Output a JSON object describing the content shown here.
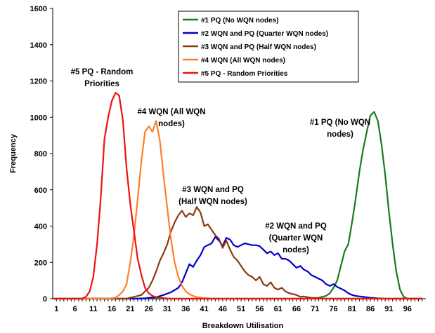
{
  "chart_data": {
    "type": "line",
    "title": "",
    "xlabel": "Breakdown Utilisation",
    "ylabel": "Frequency",
    "xlim": [
      0,
      101
    ],
    "ylim": [
      0,
      1600
    ],
    "x_tick_labels": [
      "1",
      "6",
      "11",
      "16",
      "21",
      "26",
      "31",
      "36",
      "41",
      "46",
      "51",
      "56",
      "61",
      "66",
      "71",
      "76",
      "81",
      "86",
      "91",
      "96"
    ],
    "y_tick_labels": [
      "0",
      "200",
      "400",
      "600",
      "800",
      "1000",
      "1200",
      "1400",
      "1600"
    ],
    "grid": false,
    "legend_position": "top-right",
    "series": [
      {
        "name": "#1 PQ (No WQN nodes)",
        "color": "#1a7a1a",
        "points": [
          [
            0,
            0
          ],
          [
            68,
            0
          ],
          [
            70,
            2
          ],
          [
            72,
            5
          ],
          [
            74,
            15
          ],
          [
            75,
            30
          ],
          [
            76,
            60
          ],
          [
            77,
            100
          ],
          [
            78,
            180
          ],
          [
            79,
            260
          ],
          [
            80,
            300
          ],
          [
            81,
            420
          ],
          [
            82,
            550
          ],
          [
            83,
            700
          ],
          [
            84,
            820
          ],
          [
            85,
            920
          ],
          [
            86,
            1010
          ],
          [
            87,
            1030
          ],
          [
            88,
            980
          ],
          [
            89,
            850
          ],
          [
            90,
            680
          ],
          [
            91,
            480
          ],
          [
            92,
            300
          ],
          [
            93,
            150
          ],
          [
            94,
            50
          ],
          [
            95,
            10
          ],
          [
            96,
            0
          ],
          [
            100,
            0
          ]
        ]
      },
      {
        "name": "#2 WQN and PQ (Quarter WQN nodes)",
        "color": "#0000cc",
        "points": [
          [
            0,
            0
          ],
          [
            22,
            0
          ],
          [
            25,
            2
          ],
          [
            28,
            8
          ],
          [
            30,
            20
          ],
          [
            32,
            35
          ],
          [
            34,
            60
          ],
          [
            35,
            90
          ],
          [
            36,
            140
          ],
          [
            37,
            190
          ],
          [
            38,
            175
          ],
          [
            39,
            210
          ],
          [
            40,
            240
          ],
          [
            41,
            285
          ],
          [
            42,
            295
          ],
          [
            43,
            305
          ],
          [
            44,
            340
          ],
          [
            45,
            320
          ],
          [
            46,
            290
          ],
          [
            47,
            335
          ],
          [
            48,
            325
          ],
          [
            49,
            295
          ],
          [
            50,
            285
          ],
          [
            51,
            295
          ],
          [
            52,
            305
          ],
          [
            53,
            300
          ],
          [
            54,
            295
          ],
          [
            55,
            295
          ],
          [
            56,
            290
          ],
          [
            57,
            270
          ],
          [
            58,
            250
          ],
          [
            59,
            260
          ],
          [
            60,
            240
          ],
          [
            61,
            250
          ],
          [
            62,
            220
          ],
          [
            63,
            220
          ],
          [
            64,
            210
          ],
          [
            65,
            190
          ],
          [
            66,
            170
          ],
          [
            67,
            180
          ],
          [
            68,
            160
          ],
          [
            69,
            150
          ],
          [
            70,
            130
          ],
          [
            71,
            120
          ],
          [
            72,
            110
          ],
          [
            73,
            100
          ],
          [
            74,
            80
          ],
          [
            75,
            70
          ],
          [
            76,
            80
          ],
          [
            77,
            65
          ],
          [
            78,
            55
          ],
          [
            79,
            45
          ],
          [
            80,
            30
          ],
          [
            81,
            20
          ],
          [
            82,
            15
          ],
          [
            84,
            10
          ],
          [
            86,
            5
          ],
          [
            88,
            2
          ],
          [
            90,
            0
          ],
          [
            100,
            0
          ]
        ]
      },
      {
        "name": "#3 WQN and PQ (Half WQN nodes)",
        "color": "#8b3a0f",
        "points": [
          [
            0,
            0
          ],
          [
            20,
            0
          ],
          [
            22,
            10
          ],
          [
            24,
            20
          ],
          [
            25,
            40
          ],
          [
            26,
            60
          ],
          [
            27,
            100
          ],
          [
            28,
            150
          ],
          [
            29,
            210
          ],
          [
            30,
            250
          ],
          [
            31,
            300
          ],
          [
            32,
            370
          ],
          [
            33,
            420
          ],
          [
            34,
            460
          ],
          [
            35,
            485
          ],
          [
            36,
            450
          ],
          [
            37,
            470
          ],
          [
            38,
            460
          ],
          [
            39,
            505
          ],
          [
            40,
            475
          ],
          [
            41,
            400
          ],
          [
            42,
            410
          ],
          [
            43,
            380
          ],
          [
            44,
            350
          ],
          [
            45,
            330
          ],
          [
            46,
            280
          ],
          [
            47,
            320
          ],
          [
            48,
            270
          ],
          [
            49,
            230
          ],
          [
            50,
            210
          ],
          [
            51,
            180
          ],
          [
            52,
            150
          ],
          [
            53,
            130
          ],
          [
            54,
            120
          ],
          [
            55,
            100
          ],
          [
            56,
            120
          ],
          [
            57,
            80
          ],
          [
            58,
            70
          ],
          [
            59,
            90
          ],
          [
            60,
            60
          ],
          [
            61,
            50
          ],
          [
            62,
            60
          ],
          [
            63,
            40
          ],
          [
            64,
            30
          ],
          [
            65,
            25
          ],
          [
            66,
            20
          ],
          [
            67,
            10
          ],
          [
            68,
            12
          ],
          [
            69,
            8
          ],
          [
            70,
            5
          ],
          [
            72,
            3
          ],
          [
            74,
            0
          ],
          [
            100,
            0
          ]
        ]
      },
      {
        "name": "#4 WQN (All WQN nodes)",
        "color": "#ff7f27",
        "points": [
          [
            0,
            0
          ],
          [
            15,
            0
          ],
          [
            17,
            5
          ],
          [
            18,
            20
          ],
          [
            19,
            40
          ],
          [
            20,
            80
          ],
          [
            21,
            200
          ],
          [
            22,
            350
          ],
          [
            23,
            550
          ],
          [
            24,
            760
          ],
          [
            25,
            920
          ],
          [
            26,
            950
          ],
          [
            27,
            920
          ],
          [
            28,
            980
          ],
          [
            29,
            870
          ],
          [
            30,
            680
          ],
          [
            31,
            500
          ],
          [
            32,
            330
          ],
          [
            33,
            200
          ],
          [
            34,
            120
          ],
          [
            35,
            70
          ],
          [
            36,
            40
          ],
          [
            37,
            25
          ],
          [
            38,
            15
          ],
          [
            39,
            8
          ],
          [
            41,
            3
          ],
          [
            44,
            0
          ],
          [
            100,
            0
          ]
        ]
      },
      {
        "name": "#5 PQ - Random Priorities",
        "color": "#ee1111",
        "points": [
          [
            0,
            0
          ],
          [
            8,
            0
          ],
          [
            9,
            10
          ],
          [
            10,
            40
          ],
          [
            11,
            120
          ],
          [
            12,
            300
          ],
          [
            13,
            550
          ],
          [
            14,
            880
          ],
          [
            15,
            1000
          ],
          [
            16,
            1090
          ],
          [
            17,
            1135
          ],
          [
            18,
            1120
          ],
          [
            19,
            980
          ],
          [
            20,
            720
          ],
          [
            21,
            520
          ],
          [
            22,
            370
          ],
          [
            23,
            220
          ],
          [
            24,
            130
          ],
          [
            25,
            60
          ],
          [
            26,
            30
          ],
          [
            27,
            15
          ],
          [
            28,
            8
          ],
          [
            30,
            3
          ],
          [
            32,
            0
          ],
          [
            100,
            0
          ]
        ]
      }
    ],
    "annotations": [
      {
        "lines": [
          "#5 PQ - Random",
          "Priorities"
        ]
      },
      {
        "lines": [
          "#4 WQN (All WQN",
          "nodes)"
        ]
      },
      {
        "lines": [
          "#3 WQN and PQ",
          "(Half WQN nodes)"
        ]
      },
      {
        "lines": [
          "#2 WQN and PQ",
          "(Quarter WQN",
          "nodes)"
        ]
      },
      {
        "lines": [
          "#1 PQ (No WQN",
          "nodes)"
        ]
      }
    ]
  }
}
